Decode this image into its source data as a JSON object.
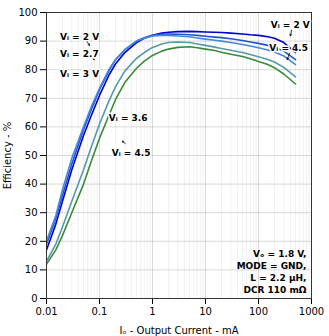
{
  "chart_data": {
    "type": "line",
    "xlabel": "Iₒ - Output Current - mA",
    "ylabel": "Efficiency - %",
    "log": "x",
    "grid": true,
    "xlim": [
      0.01,
      1000
    ],
    "ylim": [
      0,
      100
    ],
    "xticks": [
      0.01,
      0.1,
      1,
      10,
      100,
      1000
    ],
    "yticks": [
      0,
      10,
      20,
      30,
      40,
      50,
      60,
      70,
      80,
      90,
      100
    ],
    "x": [
      0.01,
      0.015,
      0.02,
      0.03,
      0.05,
      0.07,
      0.1,
      0.15,
      0.2,
      0.3,
      0.5,
      0.7,
      1.0,
      1.5,
      2.0,
      3.0,
      5.0,
      7.0,
      10,
      15,
      20,
      30,
      50,
      70,
      100,
      150,
      200,
      300,
      500
    ],
    "series": [
      {
        "color": "#0000CD",
        "values": [
          17,
          26,
          34,
          45,
          57,
          64,
          71,
          78,
          82,
          86,
          89.5,
          91,
          92,
          92.8,
          93.1,
          93.3,
          93.4,
          93.3,
          93.2,
          93.1,
          93.0,
          92.8,
          92.5,
          92.2,
          92.0,
          91.5,
          91.0,
          89.5,
          86.0
        ]
      },
      {
        "color": "#2255CC",
        "values": [
          19,
          28,
          36,
          47,
          59,
          66,
          73,
          79.5,
          83.5,
          87,
          90,
          91.2,
          92,
          92.4,
          92.5,
          92.4,
          92.2,
          92.0,
          91.7,
          91.4,
          91.2,
          90.8,
          90.2,
          89.7,
          89.2,
          88.5,
          87.8,
          86.5,
          83.5
        ]
      },
      {
        "color": "#4488DD",
        "values": [
          20,
          29,
          38,
          49,
          60,
          67,
          73.5,
          80,
          83.5,
          87,
          90,
          91,
          91.8,
          92.0,
          92.0,
          91.8,
          91.5,
          91.1,
          90.7,
          90.3,
          90.0,
          89.5,
          88.8,
          88.3,
          87.7,
          86.9,
          86.2,
          84.8,
          81.8
        ]
      },
      {
        "color": "#5599AA",
        "values": [
          13,
          19,
          25,
          34,
          45,
          53,
          61,
          69,
          74,
          79.5,
          84,
          86,
          87.8,
          89.0,
          89.5,
          89.7,
          89.5,
          89.0,
          88.5,
          87.9,
          87.4,
          86.8,
          86.0,
          85.3,
          84.5,
          83.6,
          82.7,
          80.8,
          77.5
        ]
      },
      {
        "color": "#3A8A3A",
        "values": [
          12,
          17,
          22,
          30,
          40,
          48,
          56,
          64,
          69.5,
          75.5,
          80.5,
          83,
          85,
          86.5,
          87.2,
          87.8,
          88.0,
          87.7,
          87.2,
          86.7,
          86.1,
          85.4,
          84.6,
          83.8,
          82.9,
          81.8,
          80.7,
          78.5,
          75.0
        ]
      }
    ],
    "annotations": [
      {
        "text": "Vᵢ = 2 V",
        "x": 0.065,
        "y": 88.5,
        "text_x": 0.018,
        "text_y": 90.5
      },
      {
        "text": "Vᵢ = 2.7",
        "x": 0.08,
        "y": 83.5,
        "text_x": 0.018,
        "text_y": 84.5
      },
      {
        "text": "Vᵢ = 3 V",
        "x": 0.095,
        "y": 78.5,
        "text_x": 0.018,
        "text_y": 77.5
      },
      {
        "text": "Vᵢ = 3.6",
        "x": 0.22,
        "y": 64.5,
        "text_x": 0.15,
        "text_y": 62
      },
      {
        "text": "Vᵢ = 4.5",
        "x": 0.27,
        "y": 55,
        "text_x": 0.17,
        "text_y": 50
      },
      {
        "text": "Vᵢ = 2 V",
        "x": 400,
        "y": 91.8,
        "text_x": 170,
        "text_y": 94.5
      },
      {
        "text": "Vᵢ = 4.5",
        "x": 350,
        "y": 83.5,
        "text_x": 160,
        "text_y": 86.5
      },
      {
        "text": "Vₒ = 1.8 V,\nMODE = GND,\nL = 2.2 μH,\nDCR 110 mΩ"
      }
    ]
  }
}
